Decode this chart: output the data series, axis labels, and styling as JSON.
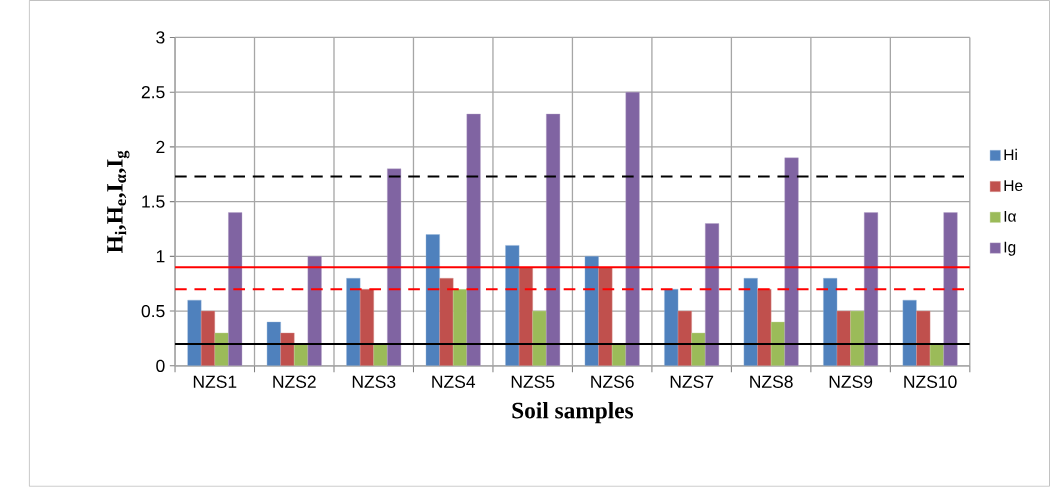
{
  "chart_data": {
    "type": "bar",
    "xlabel": "Soil samples",
    "ylabel": "H$_{i}$,H$_{e}$,I$_{α}$,I$_{g}$",
    "categories": [
      "NZS1",
      "NZS2",
      "NZS3",
      "NZS4",
      "NZS5",
      "NZS6",
      "NZS7",
      "NZS8",
      "NZS9",
      "NZS10"
    ],
    "series": [
      {
        "name": "Hi",
        "color": "#4f81bd",
        "values": [
          0.6,
          0.4,
          0.8,
          1.2,
          1.1,
          1.0,
          0.7,
          0.8,
          0.8,
          0.6
        ]
      },
      {
        "name": "He",
        "color": "#c0504d",
        "values": [
          0.5,
          0.3,
          0.7,
          0.8,
          0.9,
          0.9,
          0.5,
          0.7,
          0.5,
          0.5
        ]
      },
      {
        "name": "Iα",
        "color": "#9bbb59",
        "values": [
          0.3,
          0.2,
          0.2,
          0.7,
          0.5,
          0.2,
          0.3,
          0.4,
          0.5,
          0.2
        ]
      },
      {
        "name": "Ig",
        "color": "#8064a2",
        "values": [
          1.4,
          1.0,
          1.8,
          2.3,
          2.3,
          2.5,
          1.3,
          1.9,
          1.4,
          1.4
        ]
      }
    ],
    "ylim": [
      0,
      3
    ],
    "yticks": [
      0,
      0.5,
      1,
      1.5,
      2,
      2.5,
      3
    ],
    "grid": true,
    "legend": "right",
    "ref_lines": [
      {
        "axis": "y",
        "value": 0.2,
        "color": "#000000",
        "line_style": "solid"
      },
      {
        "axis": "y",
        "value": 0.9,
        "color": "#ff0000",
        "line_style": "solid"
      },
      {
        "axis": "y",
        "value": 0.7,
        "color": "#ff0000",
        "line_style": "dashed"
      },
      {
        "axis": "y",
        "value": 1.73,
        "color": "#000000",
        "line_style": "dashed"
      }
    ]
  }
}
